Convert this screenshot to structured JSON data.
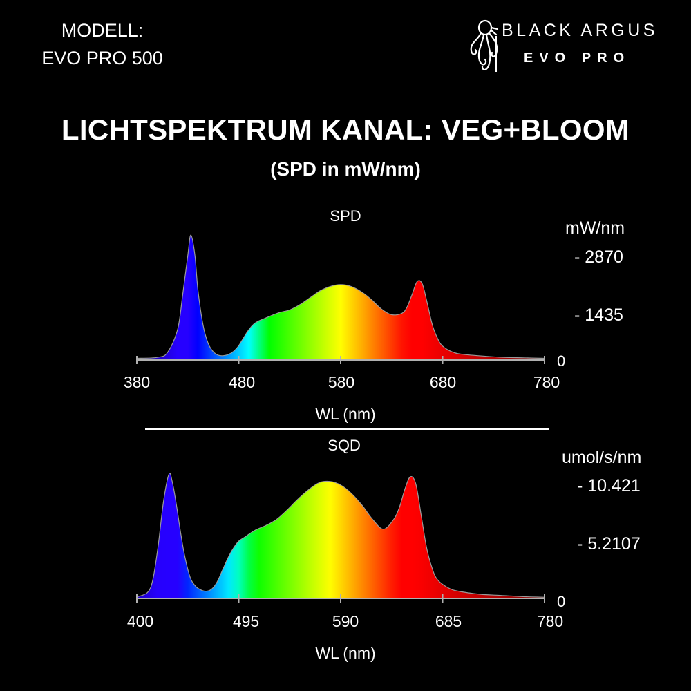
{
  "header": {
    "model_label": "MODELL:",
    "model_value": "EVO PRO 500",
    "brand_name": "BLACK ARGUS",
    "brand_sub": "EVO PRO",
    "logo_icon": "octopus-logo-icon"
  },
  "title": "LICHTSPEKTRUM KANAL: VEG+BLOOM",
  "subtitle": "(SPD in mW/nm)",
  "chart_data": [
    {
      "type": "area",
      "title": "SPD",
      "xlabel": "WL (nm)",
      "ylabel": "mW/nm",
      "xlim": [
        380,
        780
      ],
      "ylim": [
        0,
        2870
      ],
      "x_ticks": [
        "380",
        "480",
        "580",
        "680",
        "780"
      ],
      "y_ticks": [
        {
          "value": 2870,
          "label": "- 2870"
        },
        {
          "value": 1435,
          "label": "- 1435"
        },
        {
          "value": 0,
          "label": "0"
        }
      ],
      "fill": "visible-spectrum-gradient",
      "x": [
        380,
        400,
        410,
        420,
        425,
        430,
        433,
        437,
        440,
        445,
        450,
        455,
        460,
        465,
        470,
        475,
        480,
        485,
        490,
        495,
        500,
        505,
        510,
        520,
        530,
        540,
        550,
        560,
        570,
        580,
        590,
        600,
        610,
        620,
        630,
        640,
        645,
        650,
        655,
        660,
        665,
        670,
        675,
        680,
        690,
        700,
        720,
        740,
        760,
        780
      ],
      "values": [
        40,
        60,
        170,
        700,
        1500,
        2400,
        2870,
        2400,
        1600,
        800,
        380,
        190,
        110,
        100,
        130,
        200,
        330,
        520,
        700,
        830,
        900,
        950,
        1000,
        1090,
        1150,
        1270,
        1430,
        1590,
        1690,
        1730,
        1690,
        1570,
        1390,
        1170,
        1040,
        1070,
        1210,
        1500,
        1800,
        1750,
        1300,
        800,
        500,
        320,
        180,
        130,
        90,
        60,
        50,
        40
      ]
    },
    {
      "type": "area",
      "title": "SQD",
      "xlabel": "WL (nm)",
      "ylabel": "umol/s/nm",
      "xlim": [
        400,
        780
      ],
      "ylim": [
        0,
        10.421
      ],
      "x_ticks": [
        "400",
        "495",
        "590",
        "685",
        "780"
      ],
      "y_ticks": [
        {
          "value": 10.421,
          "label": "- 10.421"
        },
        {
          "value": 5.2107,
          "label": "- 5.2107"
        },
        {
          "value": 0,
          "label": "0"
        }
      ],
      "fill": "visible-spectrum-gradient",
      "x": [
        400,
        410,
        415,
        420,
        425,
        430,
        433,
        437,
        441,
        445,
        450,
        455,
        460,
        465,
        470,
        475,
        480,
        485,
        490,
        495,
        500,
        510,
        520,
        530,
        540,
        550,
        560,
        570,
        580,
        590,
        600,
        610,
        620,
        630,
        640,
        645,
        650,
        655,
        660,
        665,
        670,
        675,
        680,
        690,
        700,
        720,
        740,
        760,
        780
      ],
      "values": [
        0.12,
        0.5,
        1.6,
        4.5,
        8.2,
        10.42,
        9.8,
        7.8,
        5.4,
        3.4,
        1.7,
        1.0,
        0.7,
        0.6,
        0.8,
        1.4,
        2.4,
        3.4,
        4.2,
        4.8,
        5.1,
        5.7,
        6.1,
        6.6,
        7.4,
        8.3,
        9.1,
        9.7,
        9.8,
        9.5,
        8.8,
        7.8,
        6.6,
        5.8,
        6.7,
        7.7,
        9.2,
        10.2,
        9.6,
        7.0,
        4.3,
        2.6,
        1.6,
        0.9,
        0.6,
        0.35,
        0.25,
        0.15,
        0.1
      ]
    }
  ]
}
